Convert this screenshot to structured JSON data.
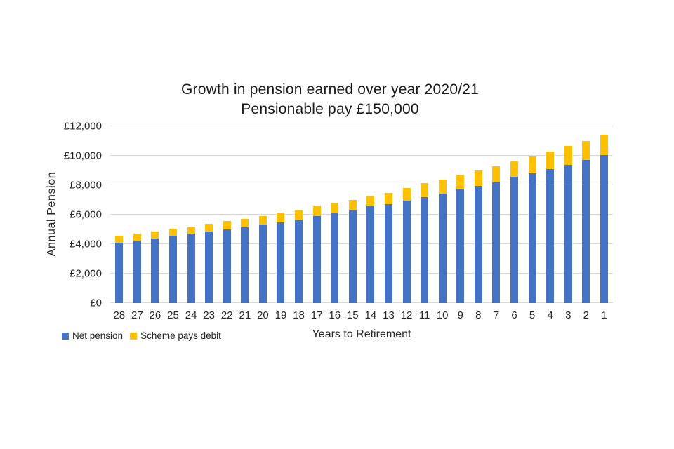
{
  "title": {
    "line1": "Growth in pension earned over year 2020/21",
    "line2": "Pensionable pay £150,000"
  },
  "colors": {
    "net_pension": "#4472C4",
    "scheme_pays_debit": "#FFC000",
    "gridline": "#D9D9D9",
    "axis_text": "#262626",
    "title_text": "#1a1a1a",
    "background": "#FFFFFF"
  },
  "chart_data": {
    "type": "bar",
    "stacked": true,
    "title": "Growth in pension earned over year 2020/21",
    "subtitle": "Pensionable pay £150,000",
    "xlabel": "Years to Retirement",
    "ylabel": "Annual Pension",
    "ylim": [
      0,
      12000
    ],
    "grid": true,
    "legend_position": "bottom-left",
    "categories": [
      "28",
      "27",
      "26",
      "25",
      "24",
      "23",
      "22",
      "21",
      "20",
      "19",
      "18",
      "17",
      "16",
      "15",
      "14",
      "13",
      "12",
      "11",
      "10",
      "9",
      "8",
      "7",
      "6",
      "5",
      "4",
      "3",
      "2",
      "1"
    ],
    "yticks": [
      {
        "value": 0,
        "label": "£0"
      },
      {
        "value": 2000,
        "label": "£2,000"
      },
      {
        "value": 4000,
        "label": "£4,000"
      },
      {
        "value": 6000,
        "label": "£6,000"
      },
      {
        "value": 8000,
        "label": "£8,000"
      },
      {
        "value": 10000,
        "label": "£10,000"
      },
      {
        "value": 12000,
        "label": "£12,000"
      }
    ],
    "series": [
      {
        "name": "Net pension",
        "color": "#4472C4",
        "values": [
          4100,
          4250,
          4400,
          4550,
          4700,
          4850,
          5000,
          5150,
          5350,
          5500,
          5650,
          5900,
          6100,
          6300,
          6550,
          6700,
          6950,
          7200,
          7450,
          7700,
          7950,
          8200,
          8550,
          8800,
          9100,
          9400,
          9700,
          10050
        ]
      },
      {
        "name": "Scheme pays debit",
        "color": "#FFC000",
        "values": [
          450,
          450,
          450,
          500,
          500,
          520,
          550,
          580,
          570,
          650,
          680,
          700,
          700,
          720,
          720,
          800,
          880,
          930,
          950,
          1000,
          1050,
          1100,
          1050,
          1150,
          1200,
          1250,
          1300,
          1400
        ]
      }
    ]
  }
}
